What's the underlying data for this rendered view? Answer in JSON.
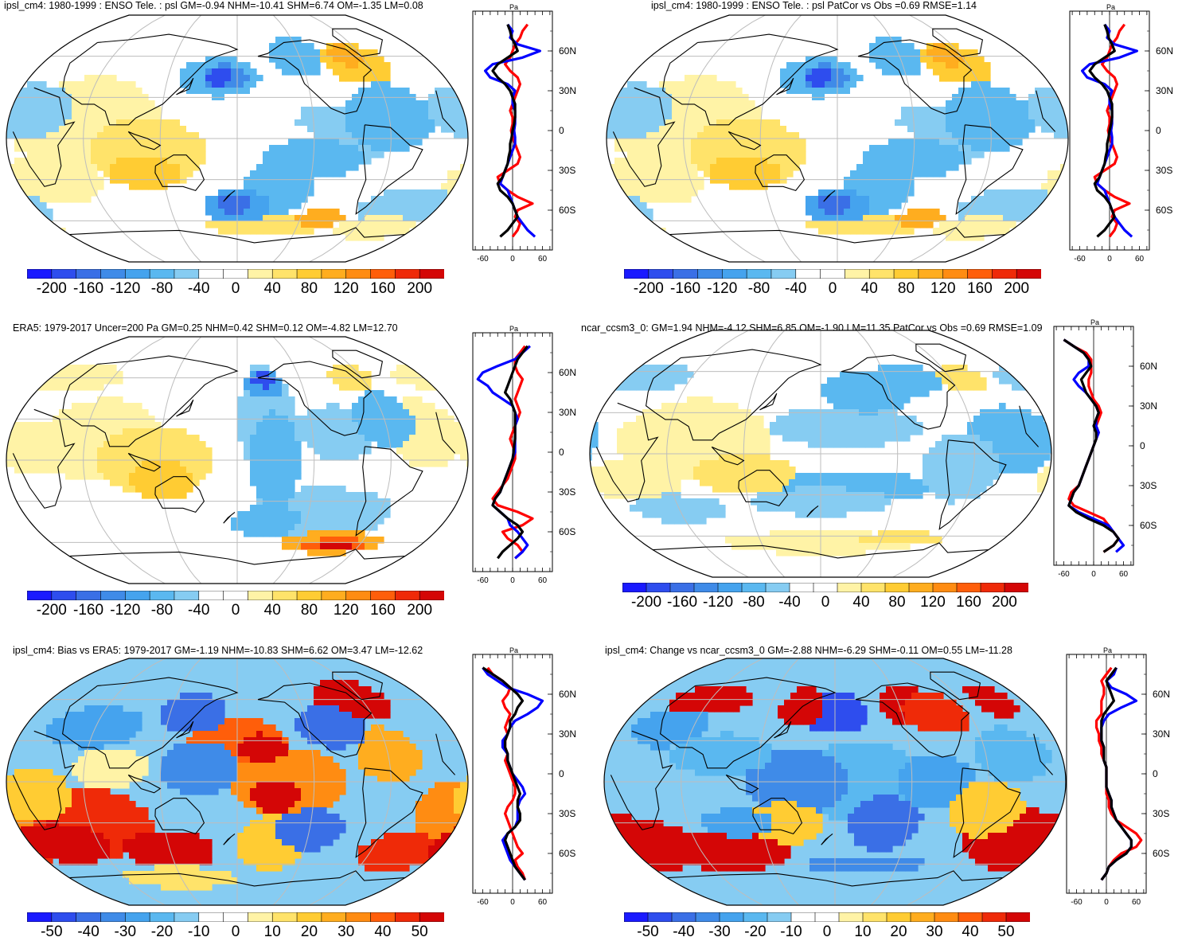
{
  "colors": {
    "palette": [
      "#1a1aff",
      "#2e4dee",
      "#3a6fe6",
      "#3f8be8",
      "#45a3ee",
      "#5ab8f0",
      "#86ccf2",
      "#ffffff",
      "#ffffff",
      "#fff3a6",
      "#ffe36a",
      "#ffcc33",
      "#ffad1f",
      "#ff8c12",
      "#ff5e0a",
      "#ef2a08",
      "#d40606"
    ],
    "land_outline": "#000000",
    "grid": "#bdbdbd",
    "line_blue": "#0000ff",
    "line_red": "#ff0000",
    "line_black": "#000000"
  },
  "panels": [
    {
      "id": "p1",
      "title": "ipsl_cm4: 1980-1999 : ENSO Tele. : psl GM=-0.94 NHM=-10.41 SHM=6.74 OM=-1.35 LM=0.08",
      "pattern": "model"
    },
    {
      "id": "p2",
      "title": "ipsl_cm4: 1980-1999 : ENSO Tele. : psl PatCor vs Obs =0.69 RMSE=1.14",
      "pattern": "model"
    },
    {
      "id": "p3",
      "title": "ERA5: 1979-2017 Uncer=200 Pa GM=0.25 NHM=0.42 SHM=0.12 OM=-4.82 LM=12.70",
      "pattern": "obs"
    },
    {
      "id": "p4",
      "title": "ncar_ccsm3_0: GM=1.94 NHM=-4.12 SHM=6.85 OM=-1.90 LM=11.35 PatCor vs Obs =0.69 RMSE=1.09",
      "pattern": "ccsm"
    },
    {
      "id": "p5",
      "title": "ipsl_cm4: Bias vs ERA5: 1979-2017 GM=-1.19 NHM=-10.83 SHM=6.62 OM=3.47 LM=-12.62",
      "pattern": "bias"
    },
    {
      "id": "p6",
      "title": "ipsl_cm4: Change vs ncar_ccsm3_0 GM=-2.88 NHM=-6.29 SHM=-0.11 OM=0.55 LM=-11.28",
      "pattern": "change"
    }
  ],
  "colorbars": {
    "psl": [
      "-200",
      "-160",
      "-120",
      "-80",
      "-40",
      "0",
      "40",
      "80",
      "120",
      "160",
      "200"
    ],
    "diff": [
      "-50",
      "-40",
      "-30",
      "-20",
      "-10",
      "0",
      "10",
      "20",
      "30",
      "40",
      "50"
    ]
  },
  "profile": {
    "unit": "Pa",
    "lat_labels": [
      "60N",
      "30N",
      "0",
      "30S",
      "60S"
    ],
    "lat_values": [
      60,
      30,
      0,
      -30,
      -60
    ],
    "x_labels": [
      "-60",
      "0",
      "60"
    ],
    "x_values": [
      -60,
      0,
      60
    ],
    "x_labels_change": [
      "-60",
      "0",
      "60"
    ]
  },
  "zonal_means": {
    "lat": [
      80,
      75,
      70,
      65,
      60,
      55,
      50,
      45,
      40,
      35,
      30,
      25,
      20,
      15,
      10,
      5,
      0,
      -5,
      -10,
      -15,
      -20,
      -25,
      -30,
      -35,
      -40,
      -45,
      -50,
      -55,
      -60,
      -65,
      -70,
      -75,
      -80
    ],
    "p1": {
      "blue": [
        -10,
        0,
        -5,
        10,
        55,
        20,
        -40,
        -55,
        -45,
        -10,
        5,
        0,
        0,
        5,
        5,
        5,
        3,
        5,
        5,
        0,
        -5,
        -10,
        -15,
        -20,
        -25,
        -10,
        -5,
        0,
        5,
        10,
        20,
        30,
        45
      ],
      "black": [
        -10,
        -5,
        -2,
        5,
        10,
        -10,
        -30,
        -40,
        -30,
        -15,
        -5,
        0,
        5,
        5,
        5,
        3,
        0,
        -2,
        -5,
        -5,
        -8,
        -10,
        -15,
        -20,
        -30,
        -25,
        -10,
        0,
        5,
        10,
        0,
        -10,
        -25
      ],
      "red": [
        30,
        20,
        15,
        5,
        0,
        -5,
        -15,
        -5,
        10,
        15,
        10,
        5,
        0,
        -5,
        0,
        0,
        -3,
        0,
        5,
        10,
        15,
        10,
        -10,
        -30,
        -25,
        -10,
        10,
        40,
        10,
        5,
        15,
        10,
        0
      ]
    },
    "p3": {
      "blue": [
        35,
        20,
        5,
        -30,
        -60,
        -70,
        -50,
        -40,
        -20,
        0,
        5,
        10,
        5,
        5,
        5,
        5,
        5,
        0,
        -5,
        -10,
        -15,
        -20,
        -25,
        -35,
        -40,
        -25,
        -10,
        -5,
        10,
        20,
        30,
        20,
        5
      ],
      "black": [
        30,
        20,
        10,
        5,
        0,
        -5,
        -10,
        -15,
        -5,
        0,
        5,
        5,
        5,
        5,
        5,
        3,
        2,
        0,
        -5,
        -10,
        -15,
        -20,
        -25,
        -35,
        -40,
        -25,
        -10,
        10,
        20,
        10,
        -5,
        -20,
        -30
      ],
      "red": [
        25,
        15,
        5,
        5,
        10,
        20,
        15,
        10,
        5,
        10,
        15,
        10,
        5,
        0,
        -5,
        0,
        5,
        5,
        0,
        -5,
        -10,
        -20,
        -30,
        -40,
        -30,
        10,
        40,
        20,
        -20,
        -10,
        10,
        20,
        5
      ]
    },
    "p4": {
      "blue": [
        -60,
        -40,
        -20,
        -10,
        -10,
        -30,
        -40,
        -30,
        -15,
        -5,
        5,
        10,
        5,
        5,
        10,
        5,
        0,
        -5,
        -10,
        -15,
        -20,
        -25,
        -30,
        -40,
        -45,
        -50,
        -30,
        0,
        30,
        40,
        50,
        60,
        45
      ],
      "black": [
        -60,
        -40,
        -20,
        -10,
        -5,
        -15,
        -25,
        -20,
        -15,
        -5,
        5,
        10,
        5,
        0,
        5,
        5,
        0,
        -5,
        -10,
        -15,
        -20,
        -25,
        -30,
        -40,
        -45,
        -50,
        -35,
        -10,
        20,
        40,
        50,
        40,
        20
      ],
      "red": [
        -60,
        -40,
        -15,
        -5,
        -5,
        -5,
        -10,
        -10,
        -5,
        0,
        10,
        15,
        10,
        5,
        10,
        5,
        0,
        -5,
        -10,
        -15,
        -20,
        -25,
        -30,
        -45,
        -50,
        -40,
        -10,
        20,
        30,
        40,
        50,
        40,
        20
      ]
    },
    "p5": {
      "blue": [
        -60,
        -50,
        -30,
        -10,
        30,
        60,
        50,
        30,
        5,
        -5,
        -10,
        -20,
        -20,
        -10,
        -10,
        -5,
        0,
        10,
        20,
        25,
        15,
        10,
        10,
        10,
        5,
        -10,
        -20,
        -15,
        -10,
        -5,
        5,
        15,
        25
      ],
      "black": [
        -60,
        -40,
        -20,
        -5,
        10,
        20,
        10,
        5,
        -5,
        -5,
        -10,
        -15,
        -15,
        -10,
        -10,
        -5,
        0,
        5,
        10,
        15,
        10,
        10,
        15,
        15,
        5,
        -10,
        -15,
        -10,
        -5,
        0,
        5,
        15,
        25
      ],
      "red": [
        -50,
        -40,
        -20,
        -5,
        -10,
        -20,
        -15,
        -5,
        -10,
        -15,
        -10,
        -15,
        -15,
        -10,
        -15,
        -10,
        -5,
        0,
        5,
        5,
        0,
        -10,
        -15,
        -10,
        -5,
        0,
        5,
        10,
        20,
        5,
        10,
        20,
        25
      ]
    },
    "p6": {
      "blue": [
        20,
        15,
        0,
        10,
        40,
        60,
        30,
        5,
        -5,
        -10,
        -10,
        -10,
        -5,
        -5,
        -5,
        0,
        0,
        0,
        0,
        5,
        10,
        10,
        15,
        20,
        30,
        40,
        50,
        50,
        40,
        20,
        5,
        0,
        -10
      ],
      "black": [
        20,
        10,
        0,
        5,
        10,
        15,
        5,
        -5,
        -10,
        -10,
        -10,
        -10,
        -5,
        -5,
        -5,
        0,
        0,
        0,
        0,
        5,
        10,
        10,
        15,
        20,
        30,
        40,
        50,
        50,
        40,
        20,
        5,
        0,
        -10
      ],
      "red": [
        10,
        0,
        -10,
        -5,
        -5,
        -10,
        -10,
        -10,
        -20,
        -20,
        -15,
        -15,
        -10,
        -10,
        -5,
        0,
        0,
        0,
        0,
        0,
        5,
        5,
        10,
        20,
        40,
        60,
        70,
        60,
        30,
        15,
        5,
        0,
        -10
      ]
    }
  }
}
